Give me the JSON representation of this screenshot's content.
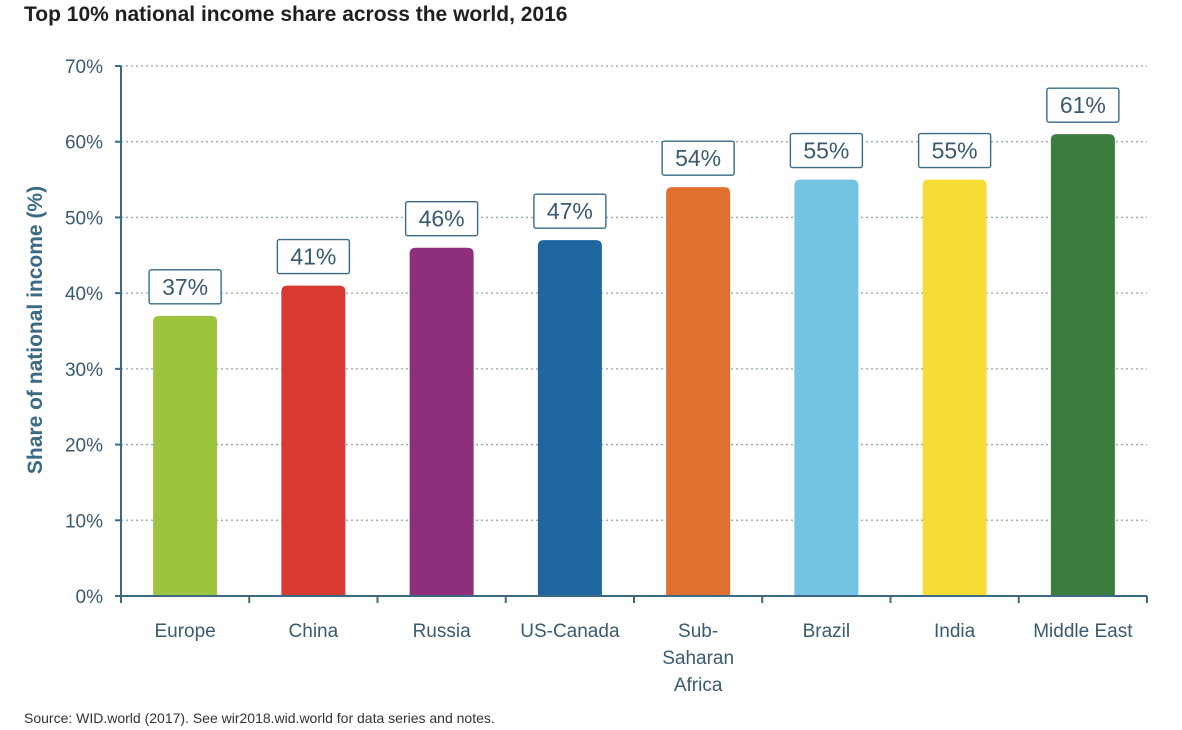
{
  "chart_data": {
    "type": "bar",
    "title": "Top 10% national income share across the world, 2016",
    "xlabel": "",
    "ylabel": "Share of national income (%)",
    "ylim": [
      0,
      70
    ],
    "yticks": [
      0,
      10,
      20,
      30,
      40,
      50,
      60,
      70
    ],
    "ytick_labels": [
      "0%",
      "10%",
      "20%",
      "30%",
      "40%",
      "50%",
      "60%",
      "70%"
    ],
    "grid": true,
    "categories": [
      "Europe",
      "China",
      "Russia",
      "US-Canada",
      "Sub-Saharan Africa",
      "Brazil",
      "India",
      "Middle East"
    ],
    "category_lines": [
      [
        "Europe"
      ],
      [
        "China"
      ],
      [
        "Russia"
      ],
      [
        "US-Canada"
      ],
      [
        "Sub-",
        "Saharan",
        "Africa"
      ],
      [
        "Brazil"
      ],
      [
        "India"
      ],
      [
        "Middle East"
      ]
    ],
    "values": [
      37,
      41,
      46,
      47,
      54,
      55,
      55,
      61
    ],
    "data_labels": [
      "37%",
      "41%",
      "46%",
      "47%",
      "54%",
      "55%",
      "55%",
      "61%"
    ],
    "colors": [
      "#9dc43f",
      "#d83a31",
      "#8e2f7c",
      "#1f65a0",
      "#e0702f",
      "#72c4e2",
      "#f6dd36",
      "#3d7d3e"
    ],
    "axis_color": "#3a6a84",
    "grid_color": "#8aa4b4"
  },
  "source_note": "Source: WID.world (2017). See wir2018.wid.world for data series and notes."
}
